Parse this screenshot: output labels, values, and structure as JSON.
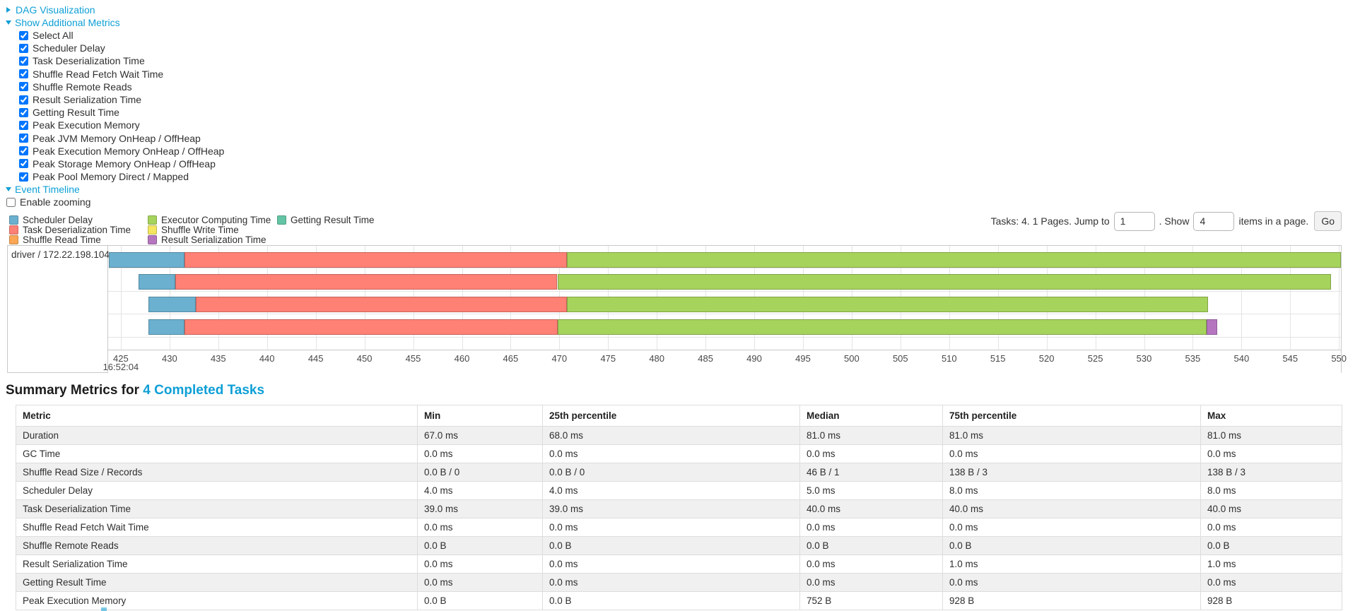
{
  "toggles": {
    "dag_label": "DAG Visualization",
    "metrics_label": "Show Additional Metrics",
    "timeline_label": "Event Timeline"
  },
  "metrics_panel": {
    "options": [
      {
        "label": "Select All",
        "checked": true
      },
      {
        "label": "Scheduler Delay",
        "checked": true
      },
      {
        "label": "Task Deserialization Time",
        "checked": true
      },
      {
        "label": "Shuffle Read Fetch Wait Time",
        "checked": true
      },
      {
        "label": "Shuffle Remote Reads",
        "checked": true
      },
      {
        "label": "Result Serialization Time",
        "checked": true
      },
      {
        "label": "Getting Result Time",
        "checked": true
      },
      {
        "label": "Peak Execution Memory",
        "checked": true
      },
      {
        "label": "Peak JVM Memory OnHeap / OffHeap",
        "checked": true
      },
      {
        "label": "Peak Execution Memory OnHeap / OffHeap",
        "checked": true
      },
      {
        "label": "Peak Storage Memory OnHeap / OffHeap",
        "checked": true
      },
      {
        "label": "Peak Pool Memory Direct / Mapped",
        "checked": true
      }
    ]
  },
  "zoom_control": {
    "label": "Enable zooming",
    "checked": false
  },
  "pagination": {
    "prefix": "Tasks: 4. 1 Pages. Jump to",
    "page_value": "1",
    "show_label": ". Show",
    "page_size_value": "4",
    "suffix": "items in a page.",
    "go_label": "Go"
  },
  "chart_data": {
    "type": "timeline",
    "group_label": "driver / 172.22.198.104",
    "axis": {
      "min": 423.7,
      "max": 550.2,
      "ticks": [
        425,
        430,
        435,
        440,
        445,
        450,
        455,
        460,
        465,
        470,
        475,
        480,
        485,
        490,
        495,
        500,
        505,
        510,
        515,
        520,
        525,
        530,
        535,
        540,
        545,
        550
      ],
      "anchor_label": "16:52:04",
      "anchor_tick": 425
    },
    "legend": [
      {
        "key": "scheduler_delay",
        "label": "Scheduler Delay",
        "color": "#6bb0cf",
        "column": 0
      },
      {
        "key": "task_deserialization",
        "label": "Task Deserialization Time",
        "color": "#ff8075",
        "column": 0
      },
      {
        "key": "shuffle_read",
        "label": "Shuffle Read Time",
        "color": "#fca756",
        "column": 0
      },
      {
        "key": "executor_computing",
        "label": "Executor Computing Time",
        "color": "#a6d35c",
        "column": 1
      },
      {
        "key": "shuffle_write",
        "label": "Shuffle Write Time",
        "color": "#f4e65e",
        "column": 1
      },
      {
        "key": "result_serialization",
        "label": "Result Serialization Time",
        "color": "#b676bf",
        "column": 1
      },
      {
        "key": "getting_result",
        "label": "Getting Result Time",
        "color": "#63c5a5",
        "column": 2
      }
    ],
    "tasks": [
      {
        "segments": [
          {
            "key": "scheduler_delay",
            "start": 423.8,
            "end": 431.5
          },
          {
            "key": "task_deserialization",
            "start": 431.5,
            "end": 470.8
          },
          {
            "key": "executor_computing",
            "start": 470.8,
            "end": 550.2
          }
        ]
      },
      {
        "segments": [
          {
            "key": "scheduler_delay",
            "start": 426.8,
            "end": 430.6
          },
          {
            "key": "task_deserialization",
            "start": 430.6,
            "end": 469.8
          },
          {
            "key": "executor_computing",
            "start": 469.8,
            "end": 549.2
          }
        ]
      },
      {
        "segments": [
          {
            "key": "scheduler_delay",
            "start": 427.8,
            "end": 432.7
          },
          {
            "key": "task_deserialization",
            "start": 432.7,
            "end": 470.8
          },
          {
            "key": "executor_computing",
            "start": 470.8,
            "end": 536.6
          }
        ]
      },
      {
        "segments": [
          {
            "key": "scheduler_delay",
            "start": 427.8,
            "end": 431.5
          },
          {
            "key": "task_deserialization",
            "start": 431.5,
            "end": 469.8
          },
          {
            "key": "executor_computing",
            "start": 469.8,
            "end": 536.4
          },
          {
            "key": "result_serialization",
            "start": 536.4,
            "end": 537.5
          }
        ]
      }
    ]
  },
  "summary": {
    "title_prefix": "Summary Metrics for",
    "title_link": "4 Completed Tasks"
  },
  "table": {
    "headers": [
      "Metric",
      "Min",
      "25th percentile",
      "Median",
      "75th percentile",
      "Max"
    ],
    "rows": [
      [
        "Duration",
        "67.0 ms",
        "68.0 ms",
        "81.0 ms",
        "81.0 ms",
        "81.0 ms"
      ],
      [
        "GC Time",
        "0.0 ms",
        "0.0 ms",
        "0.0 ms",
        "0.0 ms",
        "0.0 ms"
      ],
      [
        "Shuffle Read Size / Records",
        "0.0 B / 0",
        "0.0 B / 0",
        "46 B / 1",
        "138 B / 3",
        "138 B / 3"
      ],
      [
        "Scheduler Delay",
        "4.0 ms",
        "4.0 ms",
        "5.0 ms",
        "8.0 ms",
        "8.0 ms"
      ],
      [
        "Task Deserialization Time",
        "39.0 ms",
        "39.0 ms",
        "40.0 ms",
        "40.0 ms",
        "40.0 ms"
      ],
      [
        "Shuffle Read Fetch Wait Time",
        "0.0 ms",
        "0.0 ms",
        "0.0 ms",
        "0.0 ms",
        "0.0 ms"
      ],
      [
        "Shuffle Remote Reads",
        "0.0 B",
        "0.0 B",
        "0.0 B",
        "0.0 B",
        "0.0 B"
      ],
      [
        "Result Serialization Time",
        "0.0 ms",
        "0.0 ms",
        "0.0 ms",
        "1.0 ms",
        "1.0 ms"
      ],
      [
        "Getting Result Time",
        "0.0 ms",
        "0.0 ms",
        "0.0 ms",
        "0.0 ms",
        "0.0 ms"
      ],
      [
        "Peak Execution Memory",
        "0.0 B",
        "0.0 B",
        "752 B",
        "928 B",
        "928 B"
      ]
    ]
  }
}
